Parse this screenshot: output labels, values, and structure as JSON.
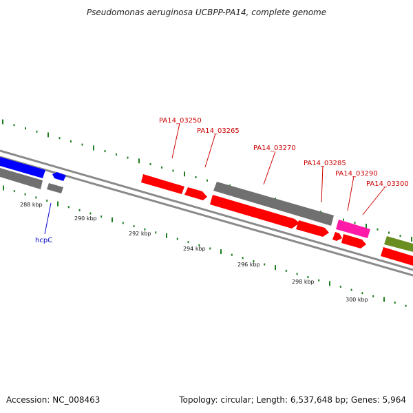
{
  "title": "Pseudomonas aeruginosa UCBPP-PA14, complete genome",
  "footer": {
    "accession": "Accession: NC_008463",
    "summary": "Topology: circular; Length: 6,537,648 bp; Genes: 5,964"
  },
  "colors": {
    "backbone": "#8a8a8a",
    "tick": "#1e7d1e",
    "red_gene": "#ff0000",
    "blue_gene": "#0000ff",
    "gray_gene": "#707070",
    "pink_gene": "#ff1aa8",
    "olive_gene": "#6b8e23",
    "red_label": "#cc0000",
    "blue_label": "#0000cc"
  },
  "gene_labels": [
    "PA14_03250",
    "PA14_03265",
    "PA14_03270",
    "PA14_03285",
    "PA14_03290",
    "PA14_03300"
  ],
  "highlight_label": "hcpC",
  "kbp_labels": [
    "288 kbp",
    "290 kbp",
    "292 kbp",
    "294 kbp",
    "296 kbp",
    "298 kbp",
    "300 kbp"
  ]
}
